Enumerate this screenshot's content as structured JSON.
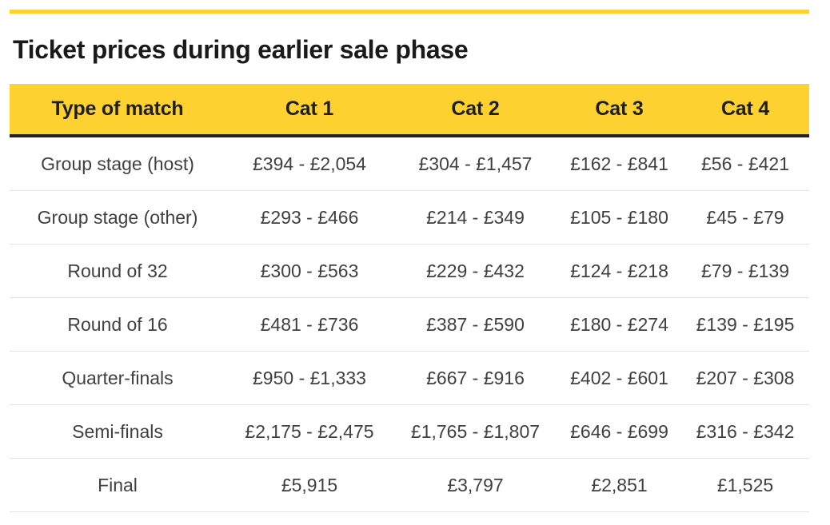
{
  "page": {
    "title": "Ticket prices during earlier sale phase"
  },
  "colors": {
    "accent_yellow": "#FDD230",
    "header_underline": "#202020",
    "row_divider": "#E3E3E3",
    "title_text": "#1A1A1A",
    "cell_text": "#404040"
  },
  "chart_data": {
    "type": "table",
    "title": "Ticket prices during earlier sale phase",
    "columns": [
      "Type of match",
      "Cat 1",
      "Cat 2",
      "Cat 3",
      "Cat 4"
    ],
    "rows": [
      [
        "Group stage (host)",
        "£394 - £2,054",
        "£304 - £1,457",
        "£162 - £841",
        "£56 - £421"
      ],
      [
        "Group stage (other)",
        "£293 - £466",
        "£214 - £349",
        "£105 - £180",
        "£45 - £79"
      ],
      [
        "Round of 32",
        "£300 - £563",
        "£229 - £432",
        "£124 - £218",
        "£79 - £139"
      ],
      [
        "Round of 16",
        "£481 - £736",
        "£387 - £590",
        "£180 - £274",
        "£139 - £195"
      ],
      [
        "Quarter-finals",
        "£950 - £1,333",
        "£667 - £916",
        "£402 - £601",
        "£207 - £308"
      ],
      [
        "Semi-finals",
        "£2,175 - £2,475",
        "£1,765 - £1,807",
        "£646 - £699",
        "£316 - £342"
      ],
      [
        "Final",
        "£5,915",
        "£3,797",
        "£2,851",
        "£1,525"
      ]
    ]
  }
}
